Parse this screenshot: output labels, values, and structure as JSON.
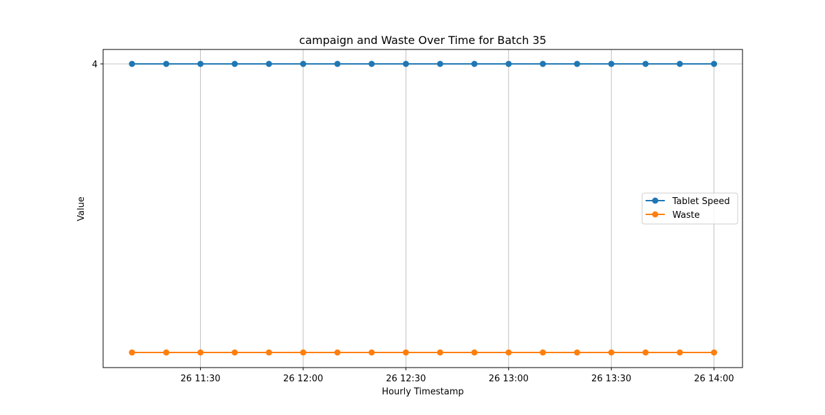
{
  "chart_data": {
    "type": "line",
    "title": "campaign and Waste Over Time for Batch 35",
    "xlabel": "Hourly Timestamp",
    "ylabel": "Value",
    "x": [
      "11:10",
      "11:20",
      "11:30",
      "11:40",
      "11:50",
      "12:00",
      "12:10",
      "12:20",
      "12:30",
      "12:40",
      "12:50",
      "13:00",
      "13:10",
      "13:20",
      "13:30",
      "13:40",
      "13:50",
      "14:00"
    ],
    "x_ticks": [
      "26 11:30",
      "26 12:00",
      "26 12:30",
      "26 13:00",
      "26 13:30",
      "26 14:00"
    ],
    "y_ticks": [
      "4"
    ],
    "y_tick_values": [
      4
    ],
    "ylim": [
      0,
      4.2
    ],
    "grid": true,
    "legend_position": "center-right",
    "series": [
      {
        "name": "Tablet Speed",
        "color": "#1f77b4",
        "values": [
          4,
          4,
          4,
          4,
          4,
          4,
          4,
          4,
          4,
          4,
          4,
          4,
          4,
          4,
          4,
          4,
          4,
          4
        ]
      },
      {
        "name": "Waste",
        "color": "#ff7f0e",
        "values": [
          0,
          0,
          0,
          0,
          0,
          0,
          0,
          0,
          0,
          0,
          0,
          0,
          0,
          0,
          0,
          0,
          0,
          0
        ]
      }
    ]
  }
}
